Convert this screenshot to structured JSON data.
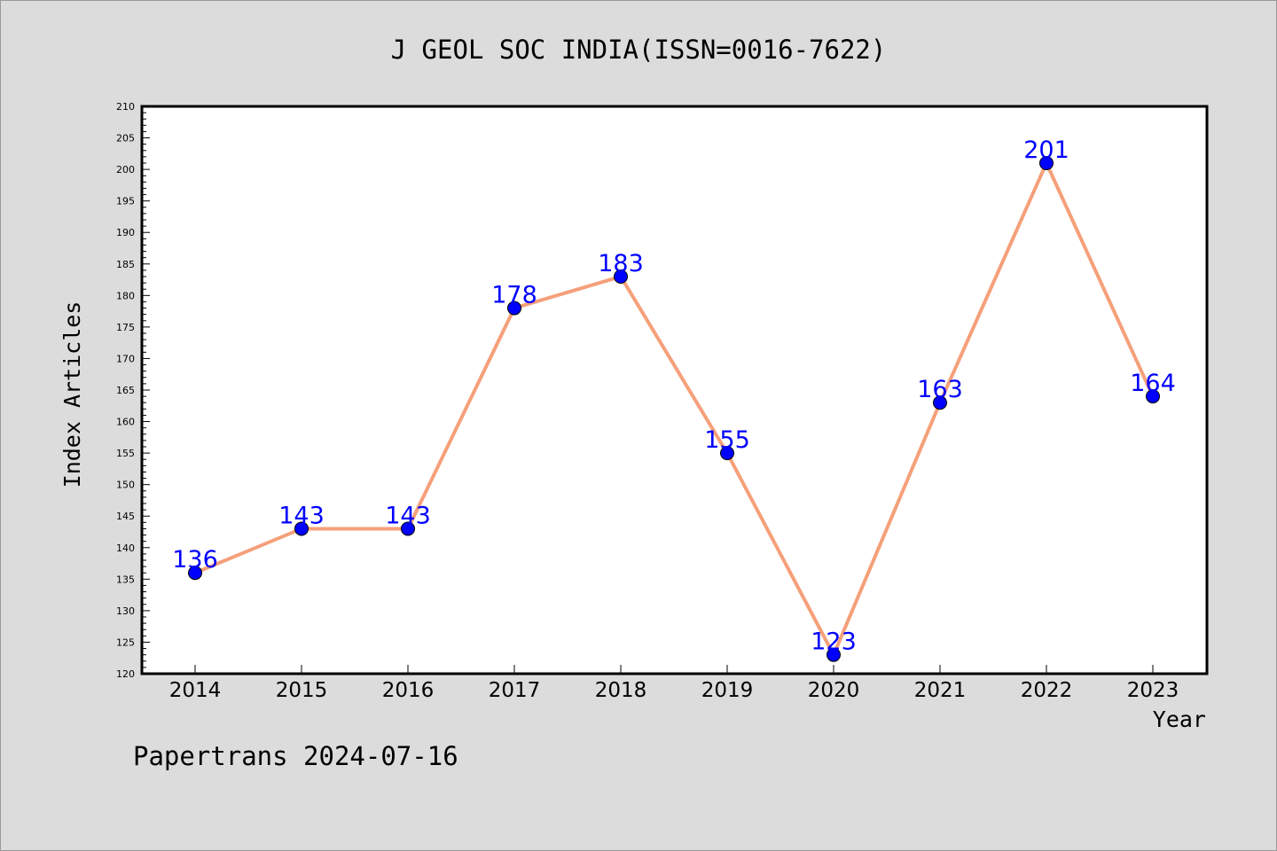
{
  "title": "J GEOL SOC INDIA(ISSN=0016-7622)",
  "footer": "Papertrans 2024-07-16",
  "colors": {
    "background": "#dcdcdc",
    "plot_area": "#ffffff",
    "line": "#f5a07a",
    "marker": "#0000ff",
    "data_label": "#0000ff"
  },
  "chart_data": {
    "type": "line",
    "title": "J GEOL SOC INDIA(ISSN=0016-7622)",
    "xlabel": "Year",
    "ylabel": "Index Articles",
    "categories": [
      "2014",
      "2015",
      "2016",
      "2017",
      "2018",
      "2019",
      "2020",
      "2021",
      "2022",
      "2023"
    ],
    "series": [
      {
        "values": [
          136,
          143,
          143,
          178,
          183,
          155,
          123,
          163,
          201,
          164
        ]
      }
    ],
    "ylim": [
      120,
      210
    ],
    "yticks": [
      120,
      125,
      130,
      135,
      140,
      145,
      150,
      155,
      160,
      165,
      170,
      175,
      180,
      185,
      190,
      195,
      200,
      205,
      210
    ],
    "grid": false,
    "legend": "none",
    "data_labels": true
  }
}
